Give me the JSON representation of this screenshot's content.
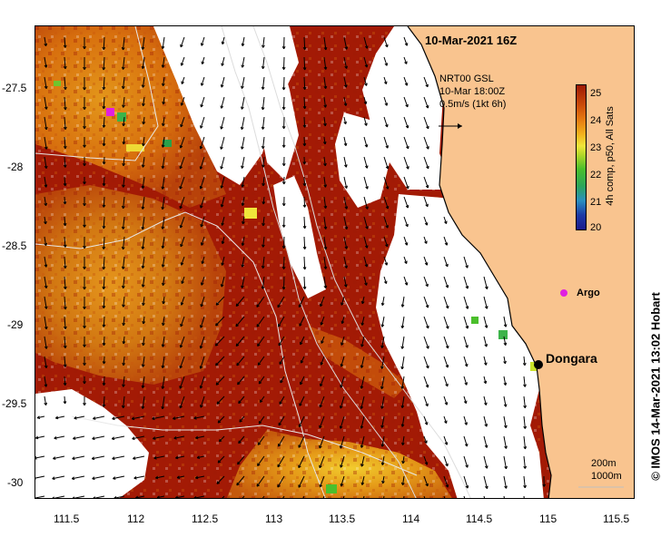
{
  "title": "10-Mar-2021 16Z",
  "current_info": {
    "line1": "NRT00 GSL",
    "line2": "10-Mar 18:00Z",
    "line3": "0.5m/s (1kt 6h)",
    "arrow_glyph": "→"
  },
  "colorbar": {
    "ticks": [
      "25",
      "24",
      "23",
      "22",
      "21",
      "20"
    ],
    "label": "4h comp, p50, All Sats",
    "color_low": "#1a1a8c",
    "color_high": "#9e1a05"
  },
  "x_axis_labels": [
    "111.5",
    "112",
    "112.5",
    "113",
    "113.5",
    "114",
    "114.5",
    "115",
    "115.5"
  ],
  "y_axis_labels": [
    "-27.5",
    "-28",
    "-28.5",
    "-29",
    "-29.5",
    "-30"
  ],
  "places": {
    "argo": {
      "label": "Argo",
      "color": "#e020e0"
    },
    "dongara": {
      "label": "Dongara"
    }
  },
  "scale": {
    "line1": "200m",
    "line2": "1000m"
  },
  "credit": "© IMOS 14-Mar-2021 13:02 Hobart",
  "colors": {
    "land": "#f9c48f",
    "cloud": "#ffffff",
    "sst_hot": "#a31a05",
    "sst_warm": "#d8760e",
    "sst_mid": "#e89a18"
  }
}
